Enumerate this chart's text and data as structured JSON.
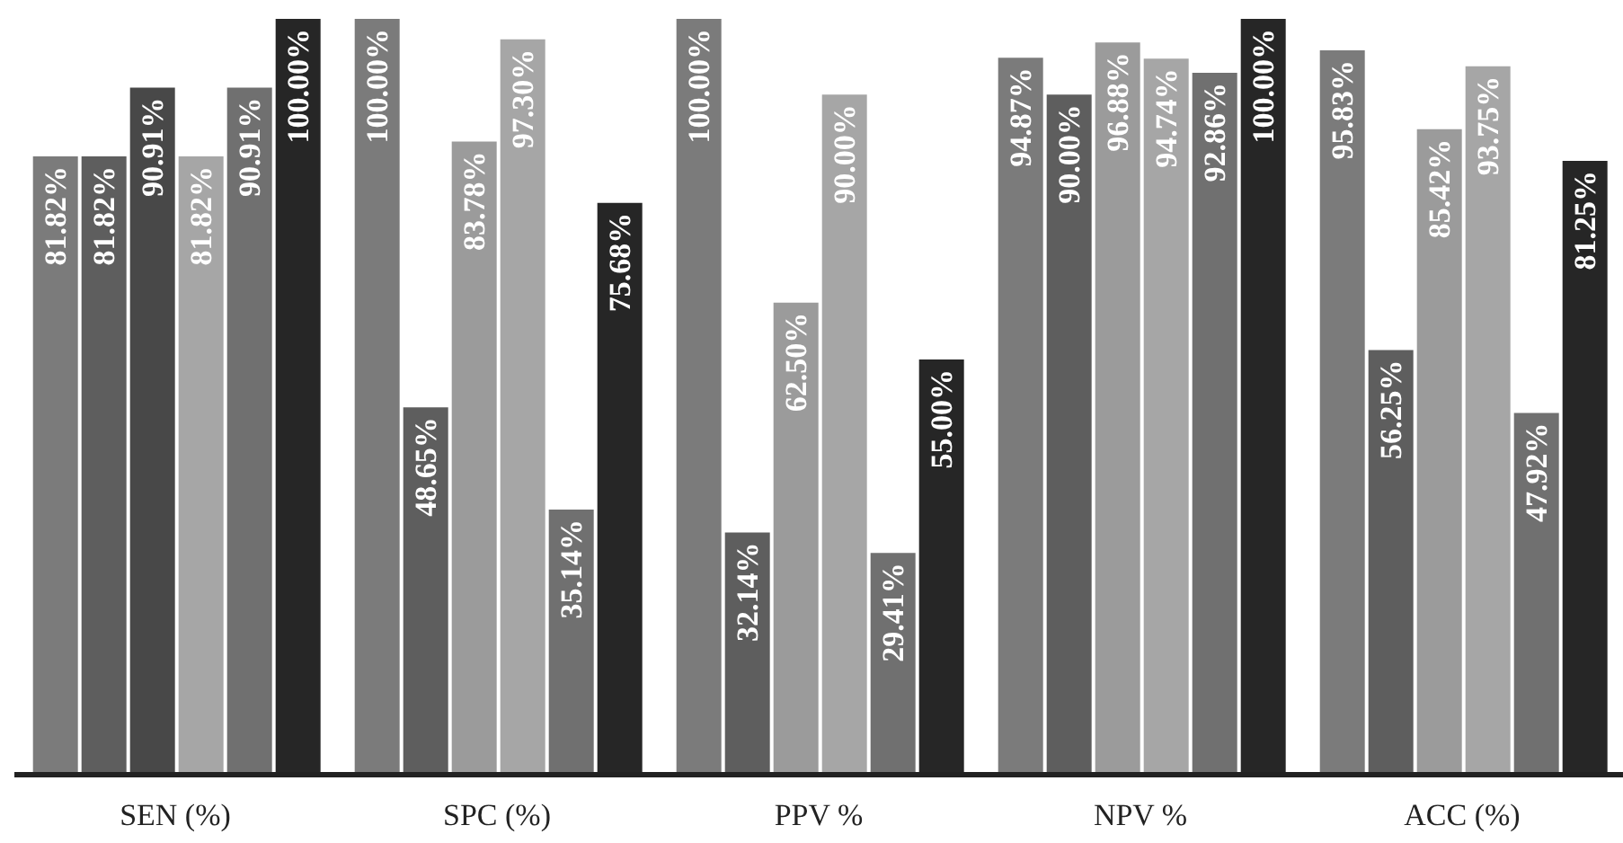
{
  "chart_data": {
    "type": "bar",
    "categories": [
      "SEN (%)",
      "SPC (%)",
      "PPV %",
      "NPV %",
      "ACC (%)"
    ],
    "ylim": [
      0,
      100
    ],
    "tick_labels": "x",
    "grid": false,
    "legend": false,
    "series": [
      {
        "color": "#7b7b7b",
        "values": [
          81.82,
          100,
          100,
          94.87,
          95.83
        ],
        "value_labels": [
          "81.82%",
          "100.00%",
          "100.00%",
          "94.87%",
          "95.83%"
        ]
      },
      {
        "color": "#5e5e5e",
        "values": [
          81.82,
          48.65,
          32.14,
          90.0,
          56.25
        ],
        "value_labels": [
          "81.82%",
          "48.65%",
          "32.14%",
          "90.00%",
          "56.25%"
        ]
      },
      {
        "color": "#9b9b9b",
        "colors": [
          "#484848",
          "#9b9b9b",
          "#9b9b9b",
          "#9b9b9b",
          "#9b9b9b"
        ],
        "values": [
          90.91,
          83.78,
          62.5,
          96.88,
          85.42
        ],
        "value_labels": [
          "90.91%",
          "83.78%",
          "62.50%",
          "96.88%",
          "85.42%"
        ]
      },
      {
        "color": "#a6a6a6",
        "values": [
          81.82,
          97.3,
          90.0,
          94.74,
          93.75
        ],
        "value_labels": [
          "81.82%",
          "97.30%",
          "90.00%",
          "94.74%",
          "93.75%"
        ]
      },
      {
        "color": "#707070",
        "values": [
          90.91,
          35.14,
          29.41,
          92.86,
          47.92
        ],
        "value_labels": [
          "90.91%",
          "35.14%",
          "29.41%",
          "92.86%",
          "47.92%"
        ]
      },
      {
        "color": "#262626",
        "values": [
          100,
          75.68,
          55.0,
          100,
          81.25
        ],
        "value_labels": [
          "100.00%",
          "75.68%",
          "55.00%",
          "100.00%",
          "81.25%"
        ]
      }
    ]
  }
}
